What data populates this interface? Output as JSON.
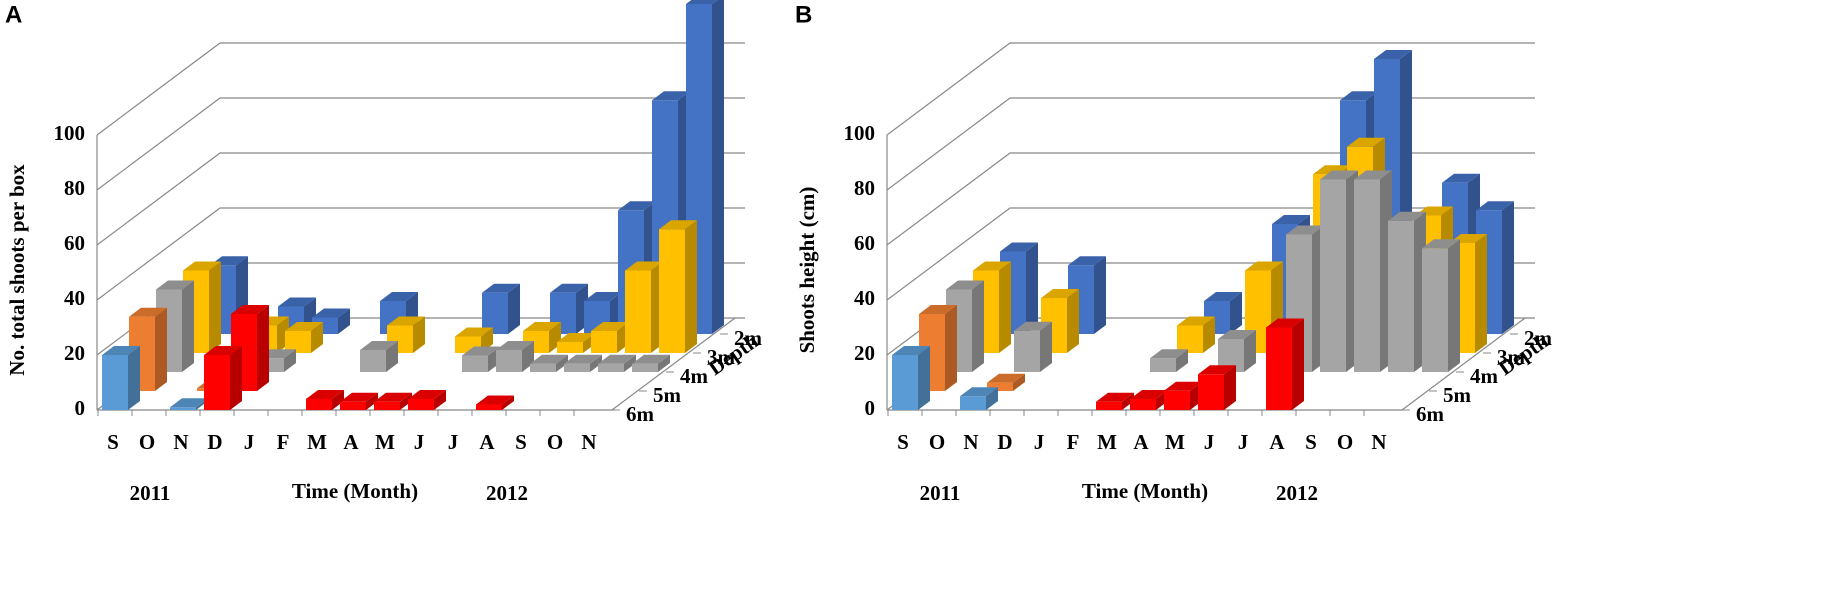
{
  "chart_data": [
    {
      "type": "bar3d",
      "title": "A",
      "ylabel": "No. total shoots per box",
      "xlabel": "Time (Month)",
      "year_labels": [
        "2011",
        "2012"
      ],
      "zlabel": "Depth",
      "categories": [
        "S",
        "O",
        "N",
        "D",
        "J",
        "F",
        "M",
        "A",
        "M",
        "J",
        "J",
        "A",
        "S",
        "O",
        "N"
      ],
      "ylim": [
        0,
        100
      ],
      "yticks": [
        0,
        20,
        40,
        60,
        80,
        100
      ],
      "series": [
        {
          "name": "2m",
          "color": "#4472c4",
          "values": [
            25,
            null,
            10,
            6,
            null,
            12,
            null,
            null,
            15,
            null,
            15,
            12,
            45,
            85,
            120
          ]
        },
        {
          "name": "3m",
          "color": "#ffc000",
          "values": [
            30,
            null,
            10,
            8,
            null,
            null,
            10,
            null,
            6,
            null,
            8,
            4,
            8,
            30,
            45
          ]
        },
        {
          "name": "4m",
          "color": "#a5a5a5",
          "values": [
            30,
            null,
            null,
            5,
            null,
            null,
            8,
            null,
            null,
            6,
            8,
            3,
            3,
            3,
            3
          ]
        },
        {
          "name": "5m",
          "color": "#ed7d31",
          "values": [
            27,
            null,
            1,
            28,
            null,
            null,
            null,
            null,
            null,
            null,
            null,
            null,
            null,
            null,
            null
          ],
          "colors": [
            "#ed7d31",
            null,
            "#ed7d31",
            "#ff0000",
            null,
            null,
            null,
            null,
            null,
            null,
            null,
            null,
            null,
            null,
            null
          ]
        },
        {
          "name": "6m",
          "color": "#ff0000",
          "values": [
            20,
            null,
            1,
            20,
            null,
            null,
            4,
            3,
            3,
            4,
            null,
            2,
            null,
            null,
            null
          ],
          "colors": [
            "#5b9bd5",
            null,
            "#5b9bd5",
            "#ff0000",
            null,
            null,
            "#ff0000",
            "#ff0000",
            "#ff0000",
            "#ff0000",
            null,
            "#ff0000",
            null,
            null,
            null
          ]
        }
      ]
    },
    {
      "type": "bar3d",
      "title": "B",
      "ylabel": "Shoots height (cm)",
      "xlabel": "Time (Month)",
      "year_labels": [
        "2011",
        "2012"
      ],
      "zlabel": "Depth",
      "categories": [
        "S",
        "O",
        "N",
        "D",
        "J",
        "F",
        "M",
        "A",
        "M",
        "J",
        "J",
        "A",
        "S",
        "O",
        "N"
      ],
      "ylim": [
        0,
        100
      ],
      "yticks": [
        0,
        20,
        40,
        60,
        80,
        100
      ],
      "series": [
        {
          "name": "2m",
          "color": "#4472c4",
          "values": [
            30,
            null,
            25,
            null,
            null,
            null,
            12,
            null,
            40,
            null,
            85,
            100,
            null,
            55,
            45
          ]
        },
        {
          "name": "3m",
          "color": "#ffc000",
          "values": [
            30,
            null,
            20,
            null,
            null,
            null,
            10,
            null,
            30,
            null,
            65,
            75,
            null,
            50,
            40
          ]
        },
        {
          "name": "4m",
          "color": "#a5a5a5",
          "values": [
            30,
            null,
            15,
            null,
            null,
            null,
            5,
            null,
            12,
            null,
            50,
            70,
            70,
            55,
            45
          ]
        },
        {
          "name": "5m",
          "color": "#ed7d31",
          "values": [
            28,
            null,
            3,
            null,
            null,
            null,
            null,
            null,
            null,
            null,
            null,
            null,
            null,
            null,
            null
          ]
        },
        {
          "name": "6m",
          "color": "#ff0000",
          "values": [
            20,
            null,
            5,
            null,
            null,
            null,
            3,
            4,
            7,
            13,
            null,
            30,
            null,
            null,
            null
          ],
          "colors": [
            "#5b9bd5",
            null,
            "#5b9bd5",
            null,
            null,
            null,
            "#ff0000",
            "#ff0000",
            "#ff0000",
            "#ff0000",
            null,
            "#ff0000",
            null,
            null,
            null
          ]
        }
      ]
    }
  ]
}
